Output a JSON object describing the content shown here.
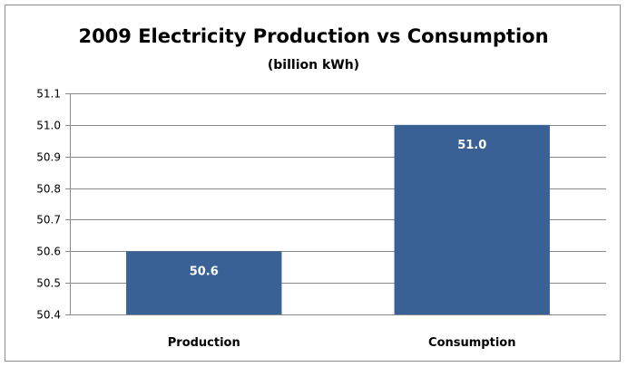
{
  "chart_data": {
    "type": "bar",
    "title": "2009 Electricity Production vs Consumption",
    "subtitle": "(billion kWh)",
    "categories": [
      "Production",
      "Consumption"
    ],
    "values": [
      50.6,
      51.0
    ],
    "data_labels": [
      "50.6",
      "51.0"
    ],
    "ylim": [
      50.4,
      51.1
    ],
    "yticks": [
      "50.4",
      "50.5",
      "50.6",
      "50.7",
      "50.8",
      "50.9",
      "51.0",
      "51.1"
    ],
    "grid": true,
    "legend": "none",
    "bar_color": "#3a6195",
    "grid_color": "#8a8a8a"
  }
}
